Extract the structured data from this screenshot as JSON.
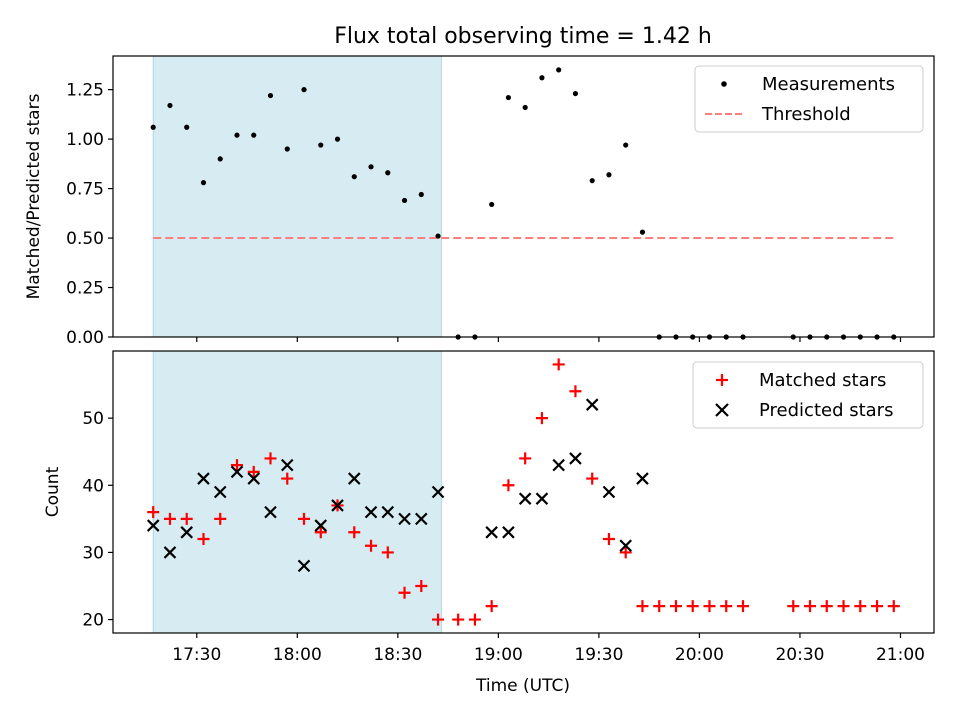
{
  "title": "Flux total observing time = 1.42 h",
  "colors": {
    "shade": "#add8e6",
    "threshold": "#ff7f7f",
    "measurement": "#000000",
    "matched": "#ff0000",
    "predicted": "#000000"
  },
  "chart_data": [
    {
      "type": "scatter",
      "ylabel": "Matched/Predicted stars",
      "ylim": [
        0,
        1.42
      ],
      "yticks": [
        0.0,
        0.25,
        0.5,
        0.75,
        1.0,
        1.25
      ],
      "ytick_labels": [
        "0.00",
        "0.25",
        "0.50",
        "0.75",
        "1.00",
        "1.25"
      ],
      "xlim": [
        "17:05",
        "21:10"
      ],
      "xticks": [
        "17:30",
        "18:00",
        "18:30",
        "19:00",
        "19:30",
        "20:00",
        "20:30",
        "21:00"
      ],
      "legend": {
        "position": "top-right",
        "entries": [
          "Measurements",
          "Threshold"
        ]
      },
      "shaded_region": {
        "start": "17:17",
        "end": "18:43"
      },
      "threshold": {
        "y": 0.5,
        "start": "17:17",
        "end": "20:58"
      },
      "series": [
        {
          "name": "Measurements",
          "x": [
            "17:17",
            "17:22",
            "17:27",
            "17:32",
            "17:37",
            "17:42",
            "17:47",
            "17:52",
            "17:57",
            "18:02",
            "18:07",
            "18:12",
            "18:17",
            "18:22",
            "18:27",
            "18:32",
            "18:37",
            "18:42",
            "18:48",
            "18:53",
            "18:58",
            "19:03",
            "19:08",
            "19:13",
            "19:18",
            "19:23",
            "19:28",
            "19:33",
            "19:38",
            "19:43",
            "19:48",
            "19:53",
            "19:58",
            "20:03",
            "20:08",
            "20:13",
            "20:28",
            "20:33",
            "20:38",
            "20:43",
            "20:48",
            "20:53",
            "20:58"
          ],
          "y": [
            1.06,
            1.17,
            1.06,
            0.78,
            0.9,
            1.02,
            1.02,
            1.22,
            0.95,
            1.25,
            0.97,
            1.0,
            0.81,
            0.86,
            0.83,
            0.69,
            0.72,
            0.51,
            0.0,
            0.0,
            0.67,
            1.21,
            1.16,
            1.31,
            1.35,
            1.23,
            0.79,
            0.82,
            0.97,
            0.53,
            0.0,
            0.0,
            0.0,
            0.0,
            0.0,
            0.0,
            0.0,
            0.0,
            0.0,
            0.0,
            0.0,
            0.0,
            0.0
          ]
        }
      ]
    },
    {
      "type": "scatter",
      "xlabel": "Time (UTC)",
      "ylabel": "Count",
      "ylim": [
        18,
        60
      ],
      "yticks": [
        20,
        30,
        40,
        50
      ],
      "ytick_labels": [
        "20",
        "30",
        "40",
        "50"
      ],
      "xlim": [
        "17:05",
        "21:10"
      ],
      "xticks": [
        "17:30",
        "18:00",
        "18:30",
        "19:00",
        "19:30",
        "20:00",
        "20:30",
        "21:00"
      ],
      "legend": {
        "position": "top-right",
        "entries": [
          "Matched stars",
          "Predicted stars"
        ]
      },
      "shaded_region": {
        "start": "17:17",
        "end": "18:43"
      },
      "series": [
        {
          "name": "Matched stars",
          "x": [
            "17:17",
            "17:22",
            "17:27",
            "17:32",
            "17:37",
            "17:42",
            "17:47",
            "17:52",
            "17:57",
            "18:02",
            "18:07",
            "18:12",
            "18:17",
            "18:22",
            "18:27",
            "18:32",
            "18:37",
            "18:42",
            "18:48",
            "18:53",
            "18:58",
            "19:03",
            "19:08",
            "19:13",
            "19:18",
            "19:23",
            "19:28",
            "19:33",
            "19:38",
            "19:43",
            "19:48",
            "19:53",
            "19:58",
            "20:03",
            "20:08",
            "20:13",
            "20:28",
            "20:33",
            "20:38",
            "20:43",
            "20:48",
            "20:53",
            "20:58"
          ],
          "y": [
            36,
            35,
            35,
            32,
            35,
            43,
            42,
            44,
            41,
            35,
            33,
            37,
            33,
            31,
            30,
            24,
            25,
            20,
            20,
            20,
            22,
            40,
            44,
            50,
            58,
            54,
            41,
            32,
            30,
            22,
            22,
            22,
            22,
            22,
            22,
            22,
            22,
            22,
            22,
            22,
            22,
            22,
            22
          ]
        },
        {
          "name": "Predicted stars",
          "x": [
            "17:17",
            "17:22",
            "17:27",
            "17:32",
            "17:37",
            "17:42",
            "17:47",
            "17:52",
            "17:57",
            "18:02",
            "18:07",
            "18:12",
            "18:17",
            "18:22",
            "18:27",
            "18:32",
            "18:37",
            "18:42",
            "18:58",
            "19:03",
            "19:08",
            "19:13",
            "19:18",
            "19:23",
            "19:28",
            "19:33",
            "19:38",
            "19:43"
          ],
          "y": [
            34,
            30,
            33,
            41,
            39,
            42,
            41,
            36,
            43,
            28,
            34,
            37,
            41,
            36,
            36,
            35,
            35,
            39,
            33,
            33,
            38,
            38,
            43,
            44,
            52,
            39,
            31,
            41
          ]
        }
      ]
    }
  ]
}
